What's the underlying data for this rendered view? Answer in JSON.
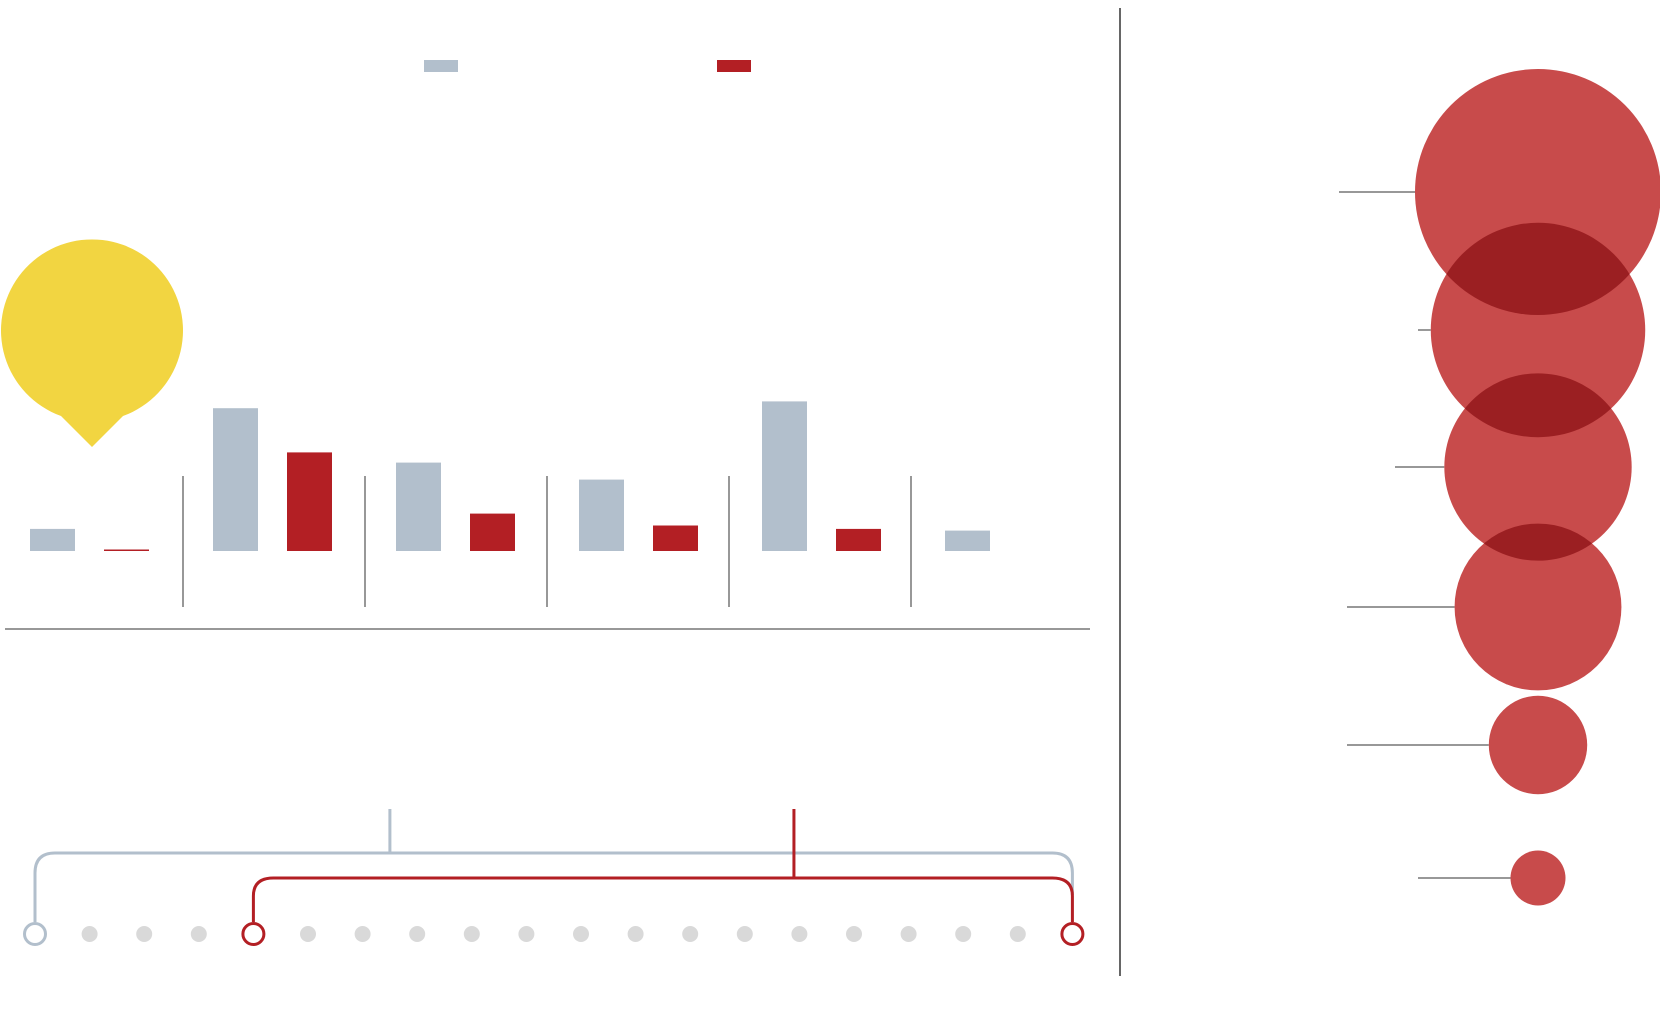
{
  "colors": {
    "series_a": "#b2bfcc",
    "series_b": "#b31f24",
    "highlight": "#f2d541",
    "bubble": "#c84b4b",
    "bubble_overlap": "#9b1f22",
    "dot": "#d9d9d9",
    "axis": "#777777",
    "divider": "#333333"
  },
  "legend": [
    {
      "color": "#b2bfcc",
      "label": ""
    },
    {
      "color": "#b31f24",
      "label": ""
    }
  ],
  "chart_data": [
    {
      "type": "bar",
      "title": "",
      "xlabel": "",
      "ylabel": "",
      "categories": [
        "",
        "",
        "",
        "",
        "",
        ""
      ],
      "ylim": [
        0,
        100
      ],
      "series": [
        {
          "values": [
            6.5,
            42,
            26,
            21,
            44,
            6
          ]
        },
        {
          "values": [
            0.3,
            29,
            11,
            7.5,
            6.5,
            0
          ]
        }
      ],
      "highlight_category_index": 0
    },
    {
      "type": "scatter",
      "title": "",
      "values": [
        100,
        76,
        58,
        46,
        16,
        5
      ]
    },
    {
      "type": "timeline",
      "dot_count": 20,
      "range_a": [
        0,
        19
      ],
      "range_b": [
        4,
        19
      ],
      "marker_a": 6.5,
      "marker_b": 13.9
    }
  ]
}
